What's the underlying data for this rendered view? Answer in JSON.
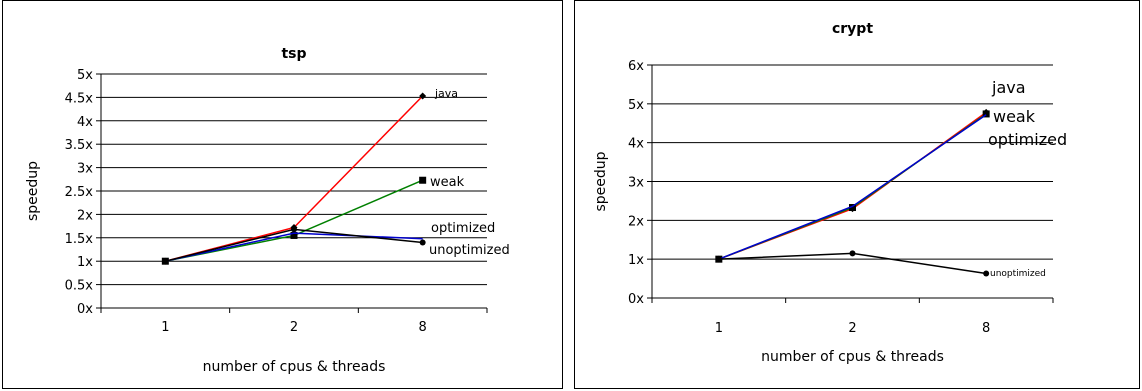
{
  "chart_data": [
    {
      "type": "line",
      "title": "tsp",
      "xlabel": "number of cpus & threads",
      "ylabel": "speedup",
      "categories": [
        "1",
        "2",
        "8"
      ],
      "ylim": [
        0,
        5
      ],
      "yticks": [
        "0x",
        "0.5x",
        "1x",
        "1.5x",
        "2x",
        "2.5x",
        "3x",
        "3.5x",
        "4x",
        "4.5x",
        "5x"
      ],
      "grid": true,
      "series": [
        {
          "name": "java",
          "values": [
            1,
            1.72,
            4.53
          ],
          "color": "#ff0000",
          "marker": "diamond"
        },
        {
          "name": "weak",
          "values": [
            1,
            1.55,
            2.73
          ],
          "color": "#008000",
          "marker": "square"
        },
        {
          "name": "optimized",
          "values": [
            1,
            1.6,
            1.48
          ],
          "color": "#0000cc",
          "marker": "none"
        },
        {
          "name": "unoptimized",
          "values": [
            1,
            1.68,
            1.4
          ],
          "color": "#000000",
          "marker": "circle"
        }
      ],
      "labels": [
        {
          "text": "java",
          "series": "java",
          "size": 11
        },
        {
          "text": "weak",
          "series": "weak",
          "size": 13
        },
        {
          "text": "optimized",
          "series": "optimized",
          "size": 13
        },
        {
          "text": "unoptimized",
          "series": "unoptimized",
          "size": 13
        }
      ]
    },
    {
      "type": "line",
      "title": "crypt",
      "xlabel": "number of cpus & threads",
      "ylabel": "speedup",
      "categories": [
        "1",
        "2",
        "8"
      ],
      "ylim": [
        0,
        6
      ],
      "yticks": [
        "0x",
        "1x",
        "2x",
        "3x",
        "4x",
        "5x",
        "6x"
      ],
      "grid": true,
      "series": [
        {
          "name": "java",
          "values": [
            1,
            2.3,
            4.78
          ],
          "color": "#ff0000",
          "marker": "diamond"
        },
        {
          "name": "weak",
          "values": [
            1,
            2.33,
            4.74
          ],
          "color": "#008000",
          "marker": "square"
        },
        {
          "name": "optimized",
          "values": [
            1,
            2.36,
            4.72
          ],
          "color": "#0000cc",
          "marker": "none"
        },
        {
          "name": "unoptimized",
          "values": [
            1,
            1.15,
            0.63
          ],
          "color": "#000000",
          "marker": "circle"
        }
      ],
      "labels": [
        {
          "text": "java",
          "series": "java",
          "size": 16
        },
        {
          "text": "weak",
          "series": "weak",
          "size": 16
        },
        {
          "text": "optimized",
          "series": "optimized",
          "size": 16
        },
        {
          "text": "unoptimized",
          "series": "unoptimized",
          "size": 9
        }
      ]
    }
  ]
}
